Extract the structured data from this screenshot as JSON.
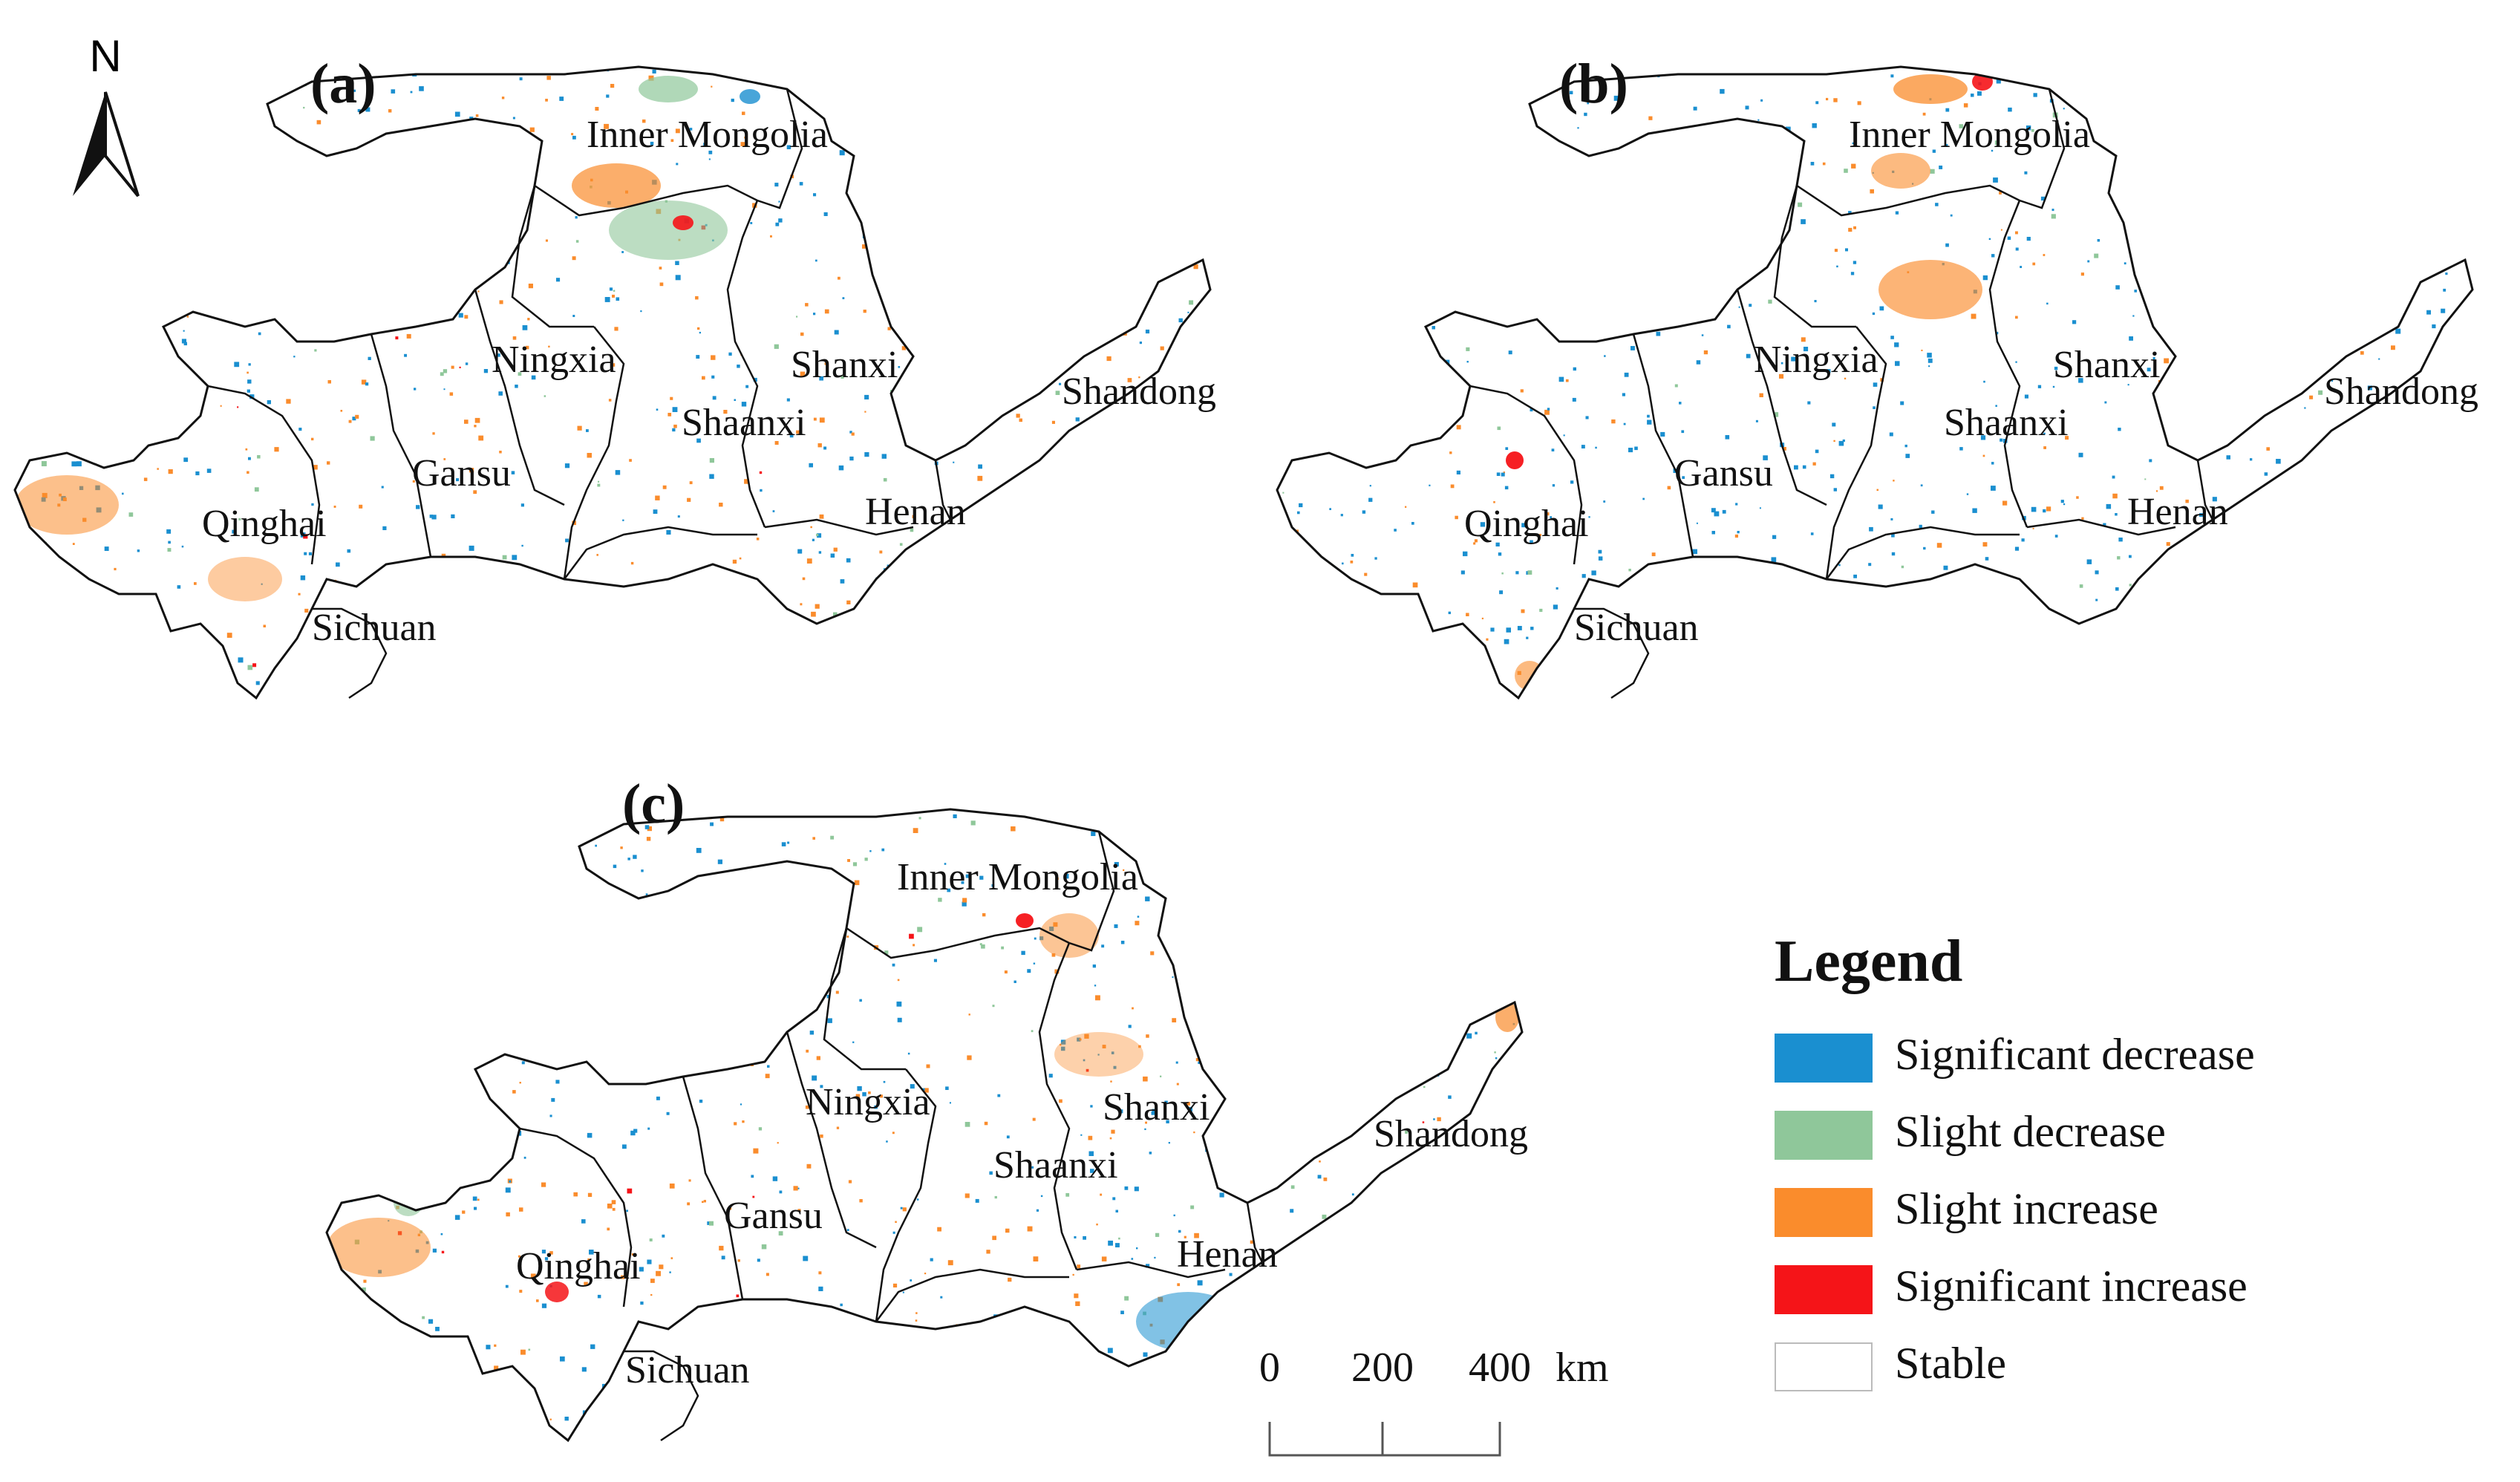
{
  "panels": [
    {
      "id": "a",
      "label": "(a)",
      "provinces": [
        "Inner Mongolia",
        "Ningxia",
        "Shanxi",
        "Shandong",
        "Shaanxi",
        "Gansu",
        "Qinghai",
        "Henan",
        "Sichuan"
      ]
    },
    {
      "id": "b",
      "label": "(b)",
      "provinces": [
        "Inner Mongolia",
        "Ningxia",
        "Shanxi",
        "Shandong",
        "Shaanxi",
        "Gansu",
        "Qinghai",
        "Henan",
        "Sichuan"
      ]
    },
    {
      "id": "c",
      "label": "(c)",
      "provinces": [
        "Inner Mongolia",
        "Ningxia",
        "Shanxi",
        "Shandong",
        "Shaanxi",
        "Gansu",
        "Qinghai",
        "Henan",
        "Sichuan"
      ]
    }
  ],
  "north_arrow": {
    "label": "N"
  },
  "legend": {
    "title": "Legend",
    "items": [
      {
        "label": "Significant decrease",
        "color": "#1a8fd0"
      },
      {
        "label": "Slight decrease",
        "color": "#8fc79a"
      },
      {
        "label": "Slight increase",
        "color": "#fa8c2c"
      },
      {
        "label": "Significant increase",
        "color": "#f51418"
      },
      {
        "label": "Stable",
        "color": "#ffffff"
      }
    ]
  },
  "scale_bar": {
    "ticks": [
      "0",
      "200",
      "400"
    ],
    "unit": "km"
  }
}
